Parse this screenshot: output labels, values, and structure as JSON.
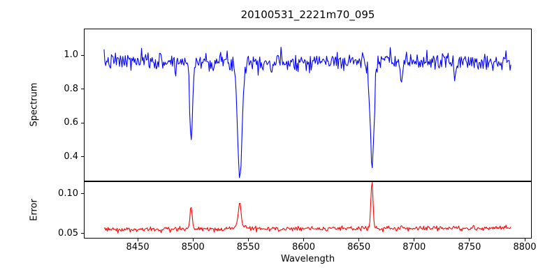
{
  "chart_data": {
    "type": "line",
    "title": "20100531_2221m70_095",
    "xlabel": "Wavelength",
    "xlim": [
      8401.3,
      8806.3
    ],
    "grid": false,
    "legend": "none",
    "x_ticks": [
      {
        "v": 8450,
        "label": "8450"
      },
      {
        "v": 8500,
        "label": "8500"
      },
      {
        "v": 8550,
        "label": "8550"
      },
      {
        "v": 8600,
        "label": "8600"
      },
      {
        "v": 8650,
        "label": "8650"
      },
      {
        "v": 8700,
        "label": "8700"
      },
      {
        "v": 8750,
        "label": "8750"
      },
      {
        "v": 8800,
        "label": "8800"
      }
    ],
    "subplots": [
      {
        "name": "spectrum",
        "ylabel": "Spectrum",
        "ylim": [
          0.2536,
          1.157
        ],
        "y_ticks": [
          {
            "v": 1.0,
            "label": "1.0"
          },
          {
            "v": 0.8,
            "label": "0.8"
          },
          {
            "v": 0.6,
            "label": "0.6"
          },
          {
            "v": 0.4,
            "label": "0.4"
          }
        ],
        "key_points": {
          "continuum_level": 0.97,
          "absorption_minima": [
            {
              "x": 8498,
              "y": 0.52
            },
            {
              "x": 8542,
              "y": 0.3
            },
            {
              "x": 8662,
              "y": 0.34
            }
          ]
        },
        "series": {
          "color": "#0000ff",
          "x_start": 8419,
          "x_end": 8788,
          "n_points": 500,
          "baseline": 0.965,
          "tilt": 0.0,
          "noise_sigma": 0.026,
          "seed": 7,
          "features": [
            {
              "center": 8498.0,
              "amplitude": -0.455,
              "sigma": 1.3
            },
            {
              "center": 8542.1,
              "amplitude": -0.67,
              "sigma": 2.1
            },
            {
              "center": 8662.1,
              "amplitude": -0.625,
              "sigma": 1.8
            },
            {
              "center": 8689.0,
              "amplitude": -0.15,
              "sigma": 0.9
            },
            {
              "center": 8737.0,
              "amplitude": -0.1,
              "sigma": 0.8
            },
            {
              "center": 8571.0,
              "amplitude": -0.07,
              "sigma": 0.8
            },
            {
              "center": 8484.0,
              "amplitude": -0.05,
              "sigma": 0.8
            }
          ]
        }
      },
      {
        "name": "error",
        "ylabel": "Error",
        "ylim": [
          0.0437,
          0.1155
        ],
        "y_ticks": [
          {
            "v": 0.1,
            "label": "0.10"
          },
          {
            "v": 0.05,
            "label": "0.05"
          }
        ],
        "key_points": {
          "baseline_level": 0.055,
          "peaks": [
            {
              "x": 8498,
              "y": 0.085
            },
            {
              "x": 8542,
              "y": 0.091
            },
            {
              "x": 8662,
              "y": 0.117
            }
          ]
        },
        "series": {
          "color": "#ff0000",
          "x_start": 8419,
          "x_end": 8788,
          "n_points": 500,
          "baseline": 0.0555,
          "tilt": 0.0015,
          "noise_sigma": 0.0016,
          "seed": 3,
          "features": [
            {
              "center": 8498.0,
              "amplitude": 0.029,
              "sigma": 1.0
            },
            {
              "center": 8542.0,
              "amplitude": 0.031,
              "sigma": 1.2
            },
            {
              "center": 8542.0,
              "amplitude": 0.004,
              "sigma": 5.0
            },
            {
              "center": 8662.0,
              "amplitude": 0.061,
              "sigma": 1.0
            },
            {
              "center": 8689.0,
              "amplitude": 0.003,
              "sigma": 1.0
            },
            {
              "center": 8737.0,
              "amplitude": 0.002,
              "sigma": 1.0
            }
          ]
        }
      }
    ]
  }
}
